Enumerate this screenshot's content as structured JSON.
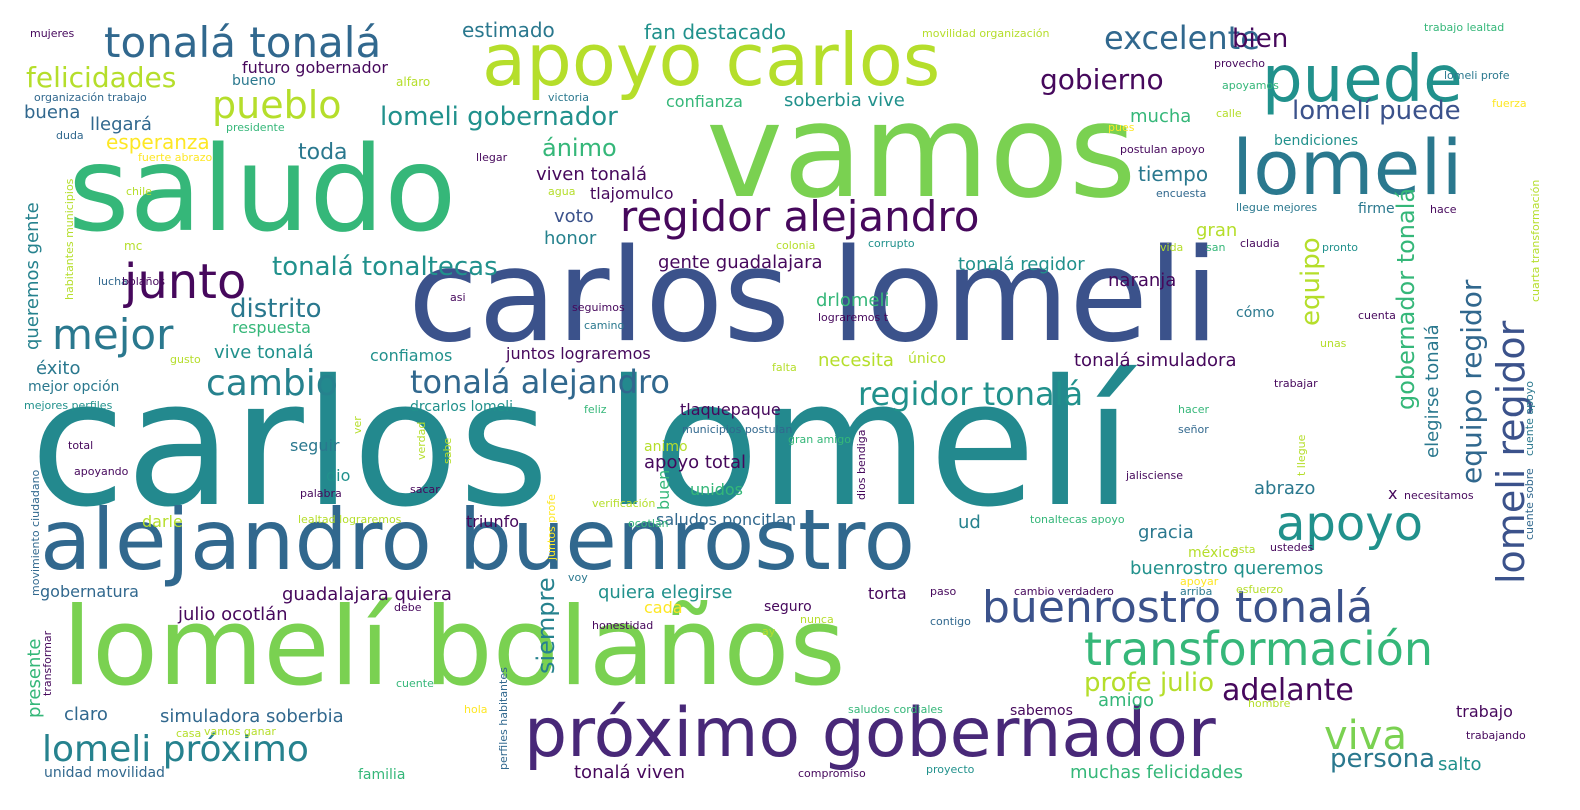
{
  "words": {
    "carlos_lomeli_acc": "carlos lomelí",
    "carlos_lomeli": "carlos lomeli",
    "vamos": "vamos",
    "saludo": "saludo",
    "alejandro_buenrostro": "alejandro buenrostro",
    "lomeli_bolanos": "lomelí bolaños",
    "apoyo_carlos": "apoyo carlos",
    "proximo_gobernador": "próximo gobernador",
    "puede": "puede",
    "lomeli": "lomeli",
    "regidor_alejandro": "regidor alejandro",
    "transformacion": "transformación",
    "buenrostro_tonala": "buenrostro tonalá",
    "apoyo": "apoyo",
    "tonala_tonala": "tonalá tonalá",
    "junto": "junto",
    "pueblo": "pueblo",
    "mejor": "mejor",
    "cambio": "cambio",
    "excelente": "excelente",
    "lomeli_proximo": "lomeli próximo",
    "tonala_alejandro": "tonalá alejandro",
    "regidor_tonala": "regidor tonalá",
    "viva": "viva",
    "felicidades": "felicidades",
    "lomeli_regidor": "lomeli regidor",
    "equipo_regidor": "equipo regidor",
    "lomeli_gobernador": "lomeli gobernador",
    "tonala_tonaltecas": "tonalá tonaltecas",
    "adelante": "adelante",
    "gobierno": "gobierno",
    "lomeli_puede": "lomelí puede",
    "bien": "bien",
    "persona": "persona",
    "profe_julio": "profe julio",
    "distrito": "distrito",
    "equipo": "equipo",
    "siempre": "siempre",
    "gobernador_tonala": "gobernador tonalá",
    "fan_destacado": "fan destacado",
    "estimado": "estimado",
    "futuro_gobernador": "futuro gobernador",
    "animo": "ánimo",
    "toda": "toda",
    "mucha": "mucha",
    "tiempo": "tiempo",
    "esperanza": "esperanza",
    "llegara": "llegará",
    "buena": "buena",
    "bueno": "bueno",
    "confianza": "confianza",
    "soberbia_vive": "soberbia vive",
    "naranja": "naranja",
    "alfaro": "alfaro",
    "viven_tonala": "viven tonalá",
    "tlajomulco": "tlajomulco",
    "voto": "voto",
    "honor": "honor",
    "gente_guadalajara": "gente guadalajara",
    "tonala_regidor": "tonalá regidor",
    "drlomeli": "drlomeli",
    "queremos_gente": "queremos gente",
    "respuesta": "respuesta",
    "vive_tonala": "vive tonalá",
    "exito": "éxito",
    "confiamos": "confiamos",
    "juntos_lograremos": "juntos lograremos",
    "necesita": "necesita",
    "unico": "único",
    "tonala_simuladora": "tonalá simuladora",
    "mejor_opcion": "mejor opción",
    "drcarlos_lomeli": "drcarlos lomeli",
    "tlaquepaque": "tlaquepaque",
    "apoyo_total": "apoyo total",
    "seguir": "seguir",
    "dio": "dio",
    "animo2": "animo",
    "elegirse_tonala": "elegirse tonalá",
    "abrazo": "abrazo",
    "unidos": "unidos",
    "darle": "darle",
    "triunfo": "triunfo",
    "saludos_poncitlan": "saludos poncitlan",
    "ud": "ud",
    "gracia": "gracia",
    "mexico": "méxico",
    "buenrostro_queremos": "buenrostro queremos",
    "gobernatura": "gobernatura",
    "guadalajara_quiera": "guadalajara quiera",
    "quiera_elegirse": "quiera elegirse",
    "cada": "cada",
    "torta": "torta",
    "julio_ocotlan": "julio ocotlán",
    "seguro": "seguro",
    "presente": "presente",
    "claro": "claro",
    "simuladora_soberbia": "simuladora soberbia",
    "amigo": "amigo",
    "sabemos": "sabemos",
    "trabajo": "trabajo",
    "unidad_movilidad": "unidad movilidad",
    "familia": "familia",
    "tonala_viven": "tonalá viven",
    "muchas_felicidades": "muchas felicidades",
    "salto": "salto",
    "gran": "gran",
    "mujeres": "mujeres",
    "organizacion_trabajo": "organización trabajo",
    "presidente": "presidente",
    "duda": "duda",
    "fuerte_abrazo": "fuerte abrazo",
    "chile": "chile",
    "habitantes_municipios": "habitantes municipios",
    "mc": "mc",
    "lucha": "lucha",
    "bolanos": "bolaños",
    "gusto": "gusto",
    "mejores_perfiles": "mejores perfiles",
    "total": "total",
    "apoyando": "apoyando",
    "movimiento_ciudadano": "movimiento ciudadano",
    "transformar": "transformar",
    "victoria": "victoria",
    "llegar": "llegar",
    "agua": "agua",
    "corrupto": "corrupto",
    "colonia": "colonia",
    "asi": "asi",
    "seguimos": "seguimos",
    "camino": "camino",
    "lograremos_t": "lograremos t",
    "falta": "falta",
    "feliz": "feliz",
    "municipios_postulan": "municipios postulan",
    "gran_amigo": "gran amigo",
    "dios_bendiga": "dios bendiga",
    "movilidad_organizacion": "movilidad organización",
    "trabajo_lealtad": "trabajo lealtad",
    "lomeli_profe": "lomeli profe",
    "provecho": "provecho",
    "apoyamos": "apoyamos",
    "calle": "calle",
    "fuerza": "fuerza",
    "pues": "pues",
    "bendiciones": "bendiciones",
    "postulan_apoyo": "postulan apoyo",
    "encuesta": "encuesta",
    "llegue_mejores": "llegue mejores",
    "firme": "firme",
    "hace": "hace",
    "cuarta_transformacion": "cuarta transformación",
    "vida": "vida",
    "san": "san",
    "claudia": "claudia",
    "pronto": "pronto",
    "como": "cómo",
    "cuenta": "cuenta",
    "unas": "unas",
    "trabajar": "trabajar",
    "hacer": "hacer",
    "senor": "señor",
    "t_llegue": "t llegue",
    "cuente_apoyo": "cuente apoyo",
    "jalisciense": "jalisciense",
    "necesitamos": "necesitamos",
    "x": "x",
    "cuente_sobre": "cuente sobre",
    "ustedes": "ustedes",
    "asta": "asta",
    "apoyar": "apoyar",
    "esfuerzo": "esfuerzo",
    "arriba": "arriba",
    "cambio_verdadero": "cambio verdadero",
    "paso": "paso",
    "contigo": "contigo",
    "tonaltecas_apoyo": "tonaltecas apoyo",
    "ocotlan": "ocotlán",
    "verificacion": "verificación",
    "lealtad_lograremos": "lealtad lograremos",
    "sacar": "sacar",
    "palabra": "palabra",
    "sabe": "sabe",
    "verdad": "verdad",
    "ver": "ver",
    "voy": "voy",
    "debe": "debe",
    "juntos_profe": "juntos profe",
    "buen": "buen",
    "honestidad": "honestidad",
    "nunca": "nunca",
    "ay": "ay",
    "perfiles_habitantes": "perfiles habitantes",
    "cuente": "cuente",
    "hola": "hola",
    "casa": "casa",
    "vamos_ganar": "vamos ganar",
    "saludos_cordiales": "saludos cordiales",
    "compromiso": "compromiso",
    "proyecto": "proyecto",
    "hombre": "hombre",
    "trabajando": "trabajando"
  },
  "colors": {
    "viridis_dark_purple": "#440154",
    "viridis_indigo": "#3b528b",
    "viridis_blue": "#31688e",
    "viridis_teal": "#21918c",
    "viridis_green": "#35b779",
    "viridis_light_green": "#7ad151",
    "viridis_yellow_green": "#b5de2b",
    "viridis_yellow": "#fde725"
  }
}
